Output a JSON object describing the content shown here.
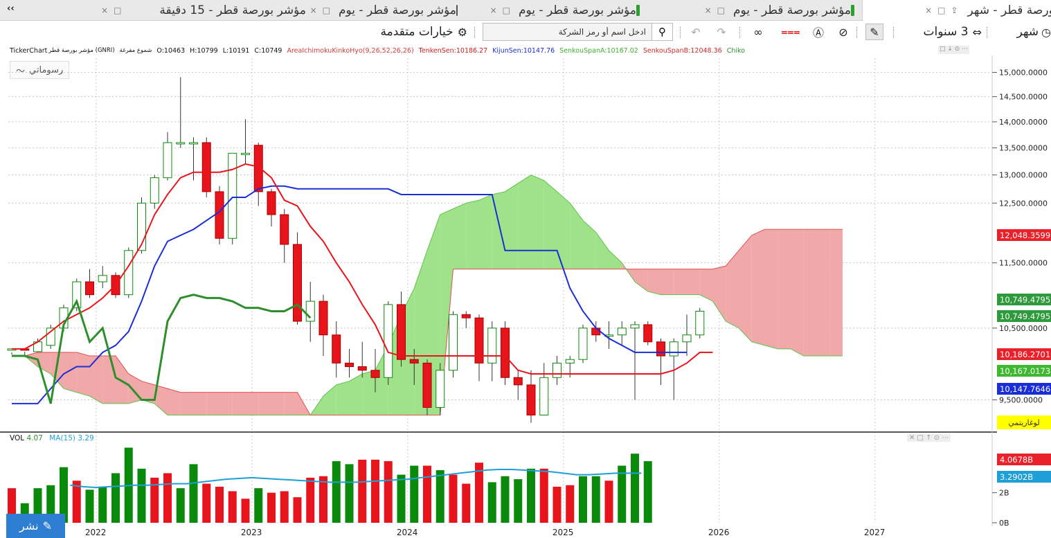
{
  "tabs": {
    "expand": "‹‹",
    "items": [
      {
        "title": "مؤشر بورصة قطر - 15 دقيقة",
        "marker": ""
      },
      {
        "title": "مؤشر بورصة قطر - يوم",
        "marker": "#ffffff"
      },
      {
        "title": "مؤشر بورصة قطر - يوم",
        "marker": "#2ca02c"
      },
      {
        "title": "مؤشر بورصة قطر - يوم",
        "marker": "#2ca02c"
      },
      {
        "title": "مؤشر بورصة قطر - شهر",
        "marker": "#2ca02c"
      }
    ],
    "ctrl_close": "×",
    "ctrl_max": "□",
    "ctrl_pin": "⇪"
  },
  "toolbar": {
    "period_label": "شهر",
    "range_label": "3 سنوات",
    "advanced_label": "خيارات متقدمة",
    "search_placeholder": "ادخل اسم أو رمز الشركة"
  },
  "info": {
    "source": "TickerChart",
    "symbol": "مؤشر بورصة قطر (GNRI)",
    "candle_type": "شموع مفرغة",
    "open": "O:10463",
    "high": "H:10799",
    "low": "L:10191",
    "close": "C:10749",
    "ichimoku": "AreaIchimokuKinkoHyo(9,26,52,26,26)",
    "tenken": "TenkenSen:10186.27",
    "kijun": "KijunSen:10147.76",
    "spanA": "SenkouSpanA:10167.02",
    "spanB": "SenkouSpanB:12048.36",
    "chiko": "Chiko"
  },
  "drawings_label": "رسوماتي",
  "volume_info": {
    "label": "VOL",
    "value": "4.07",
    "ma_label": "MA(15)",
    "ma_value": "3.29"
  },
  "price_badges": [
    {
      "text": "12,048.3599",
      "color": "#e8212b"
    },
    {
      "text": "10,749.4795",
      "color": "#2e9a3c"
    },
    {
      "text": "10,749.4795",
      "color": "#2e9a3c"
    },
    {
      "text": "10,186.2701",
      "color": "#e8212b"
    },
    {
      "text": "10,167.0173",
      "color": "#3eb82f"
    },
    {
      "text": "10,147.7646",
      "color": "#1b2ed6"
    }
  ],
  "volume_badges": [
    {
      "text": "4.0678B",
      "color": "#e8212b"
    },
    {
      "text": "3.2902B",
      "color": "#1f9fd8"
    }
  ],
  "log_label": "لوغاريتمي",
  "share_label": "نشر",
  "chart_data": {
    "type": "candlestick",
    "y_ticks": [
      "15,000.0000",
      "14,500.0000",
      "14,000.0000",
      "13,500.0000",
      "13,000.0000",
      "12,500.0000",
      "11,500.0000",
      "10,500.0000",
      "9,500.0000"
    ],
    "y_tick_values": [
      15000,
      14500,
      14000,
      13500,
      13000,
      12500,
      11500,
      10500,
      9500
    ],
    "vol_ticks": [
      "2B",
      "0B"
    ],
    "vol_tick_values": [
      2,
      0
    ],
    "x_labels": [
      "2022",
      "2023",
      "2024",
      "2025",
      "2026",
      "2027"
    ],
    "x_label_index": [
      6.5,
      18.5,
      30.5,
      42.5,
      54.5,
      66.5
    ],
    "candles": [
      [
        10200,
        10200,
        10150,
        10120
      ],
      [
        10200,
        10180,
        10160,
        10100
      ],
      [
        10160,
        10300,
        10350,
        10150
      ],
      [
        10250,
        10500,
        10550,
        10200
      ],
      [
        10500,
        10800,
        10850,
        10450
      ],
      [
        10800,
        11200,
        11250,
        10750
      ],
      [
        11200,
        11000,
        11400,
        10950
      ],
      [
        11200,
        11300,
        11450,
        11100
      ],
      [
        11300,
        11000,
        11350,
        10950
      ],
      [
        11000,
        11700,
        11750,
        10950
      ],
      [
        11700,
        12500,
        12600,
        11650
      ],
      [
        12500,
        12950,
        13000,
        12400
      ],
      [
        12950,
        13600,
        13800,
        12900
      ],
      [
        13600,
        13600,
        14900,
        13500
      ],
      [
        13600,
        13600,
        13700,
        12900
      ],
      [
        13600,
        12700,
        13700,
        12600
      ],
      [
        12700,
        11900,
        12800,
        11800
      ],
      [
        11900,
        13400,
        13400,
        11800
      ],
      [
        13400,
        13400,
        14050,
        13200
      ],
      [
        13550,
        12700,
        13600,
        12450
      ],
      [
        12700,
        12300,
        12750,
        12100
      ],
      [
        12300,
        11800,
        12400,
        11500
      ],
      [
        11800,
        10600,
        12000,
        10550
      ],
      [
        10600,
        10900,
        11200,
        10300
      ],
      [
        10900,
        10400,
        11000,
        10100
      ],
      [
        10400,
        10000,
        10600,
        9800
      ],
      [
        10000,
        9950,
        10200,
        9800
      ],
      [
        9950,
        9900,
        10300,
        9800
      ],
      [
        9900,
        9800,
        10200,
        9600
      ],
      [
        9800,
        10850,
        10900,
        9700
      ],
      [
        10850,
        10050,
        11050,
        9950
      ],
      [
        10050,
        10000,
        10200,
        9700
      ],
      [
        10000,
        9400,
        10050,
        9300
      ],
      [
        9400,
        9900,
        10000,
        9300
      ],
      [
        9900,
        10700,
        10750,
        9800
      ],
      [
        10700,
        10650,
        10750,
        10500
      ],
      [
        10650,
        10000,
        10700,
        9750
      ],
      [
        10000,
        10500,
        10600,
        9750
      ],
      [
        10500,
        9800,
        10600,
        9700
      ],
      [
        9800,
        9700,
        9900,
        9500
      ],
      [
        9700,
        9300,
        9900,
        9200
      ],
      [
        9300,
        9800,
        10000,
        9300
      ],
      [
        9800,
        10000,
        10100,
        9700
      ],
      [
        10000,
        10050,
        10100,
        9800
      ],
      [
        10050,
        10500,
        10550,
        10000
      ],
      [
        10500,
        10400,
        10600,
        10300
      ],
      [
        10400,
        10400,
        10600,
        10200
      ],
      [
        10400,
        10500,
        10600,
        10250
      ],
      [
        10500,
        10550,
        10600,
        9500
      ],
      [
        10550,
        10300,
        10600,
        10250
      ],
      [
        10300,
        10100,
        10350,
        9700
      ],
      [
        10100,
        10300,
        10350,
        9500
      ],
      [
        10300,
        10400,
        10700,
        10100
      ],
      [
        10400,
        10750,
        10800,
        10350
      ]
    ],
    "tenken": [
      10200,
      10200,
      10300,
      10450,
      10600,
      10700,
      10800,
      10950,
      11150,
      11450,
      11800,
      12300,
      12650,
      12950,
      13050,
      13050,
      13050,
      13100,
      13200,
      13150,
      12950,
      12550,
      12450,
      12100,
      11850,
      11500,
      11200,
      10850,
      10550,
      10150,
      10100,
      10100,
      10100,
      10100,
      10100,
      10100,
      10100,
      10100,
      10100,
      9900,
      9850,
      9850,
      9850,
      9850,
      9850,
      9850,
      9850,
      9850,
      9850,
      9850,
      9850,
      9900,
      10000,
      10150,
      10150
    ],
    "kijun": [
      9450,
      9450,
      9450,
      9650,
      9850,
      9950,
      9950,
      10150,
      10250,
      10450,
      10900,
      11450,
      11850,
      11950,
      12050,
      12200,
      12350,
      12600,
      12600,
      12750,
      12800,
      12800,
      12750,
      12750,
      12750,
      12750,
      12750,
      12750,
      12750,
      12750,
      12650,
      12650,
      12650,
      12650,
      12650,
      12650,
      12650,
      12650,
      11700,
      11700,
      11700,
      11700,
      11700,
      11100,
      10750,
      10500,
      10350,
      10250,
      10150,
      10150,
      10150,
      10150,
      10150
    ],
    "chiko": [
      10100,
      10100,
      10050,
      9450,
      10550,
      10900,
      10300,
      10500,
      9800,
      9700,
      9500,
      9500,
      10600,
      10950,
      11000,
      10950,
      10950,
      10900,
      10800,
      10800,
      10750,
      10750,
      10850,
      10650
    ],
    "cloud_a": [
      10100,
      10100,
      9950,
      9850,
      9650,
      9600,
      9550,
      9450,
      9450,
      9450,
      9500,
      9450,
      9300,
      9300,
      9300,
      9300,
      9300,
      9300,
      9300,
      9300,
      9300,
      9300,
      9300,
      9300,
      9550,
      9700,
      9750,
      9850,
      9900,
      10250,
      10700,
      11100,
      11700,
      12300,
      12400,
      12500,
      12550,
      12650,
      12700,
      12850,
      13000,
      12900,
      12700,
      12500,
      12200,
      12000,
      11700,
      11500,
      11200,
      11050,
      11000,
      11000,
      11000,
      11000,
      10900,
      10600,
      10500,
      10300,
      10250,
      10200,
      10200,
      10100,
      10100,
      10100,
      10100
    ],
    "cloud_b": [
      10100,
      10100,
      10150,
      10150,
      10150,
      10150,
      10100,
      10100,
      10100,
      9850,
      9750,
      9700,
      9650,
      9600,
      9600,
      9600,
      9600,
      9600,
      9600,
      9600,
      9600,
      9600,
      9600,
      9300,
      9300,
      9300,
      9300,
      9300,
      9300,
      9300,
      9300,
      9300,
      9300,
      9300,
      11400,
      11400,
      11400,
      11400,
      11400,
      11400,
      11400,
      11400,
      11400,
      11400,
      11400,
      11400,
      11400,
      11400,
      11400,
      11400,
      11400,
      11400,
      11400,
      11400,
      11400,
      11450,
      11700,
      11950,
      12050,
      12050,
      12050,
      12050,
      12050,
      12050,
      12050
    ],
    "volume": [
      [
        2.3,
        "r"
      ],
      [
        1.3,
        "g"
      ],
      [
        2.3,
        "g"
      ],
      [
        2.5,
        "g"
      ],
      [
        3.7,
        "g"
      ],
      [
        2.8,
        "r"
      ],
      [
        2.2,
        "g"
      ],
      [
        2.4,
        "g"
      ],
      [
        3.3,
        "g"
      ],
      [
        5.0,
        "g"
      ],
      [
        3.6,
        "g"
      ],
      [
        3.0,
        "r"
      ],
      [
        3.3,
        "r"
      ],
      [
        2.3,
        "g"
      ],
      [
        3.9,
        "g"
      ],
      [
        2.6,
        "r"
      ],
      [
        2.4,
        "r"
      ],
      [
        2.1,
        "r"
      ],
      [
        1.6,
        "r"
      ],
      [
        2.3,
        "g"
      ],
      [
        2.0,
        "r"
      ],
      [
        2.1,
        "r"
      ],
      [
        1.7,
        "r"
      ],
      [
        3.0,
        "r"
      ],
      [
        3.1,
        "r"
      ],
      [
        4.1,
        "g"
      ],
      [
        3.9,
        "g"
      ],
      [
        4.2,
        "r"
      ],
      [
        4.2,
        "r"
      ],
      [
        4.1,
        "r"
      ],
      [
        3.2,
        "g"
      ],
      [
        3.8,
        "g"
      ],
      [
        3.8,
        "r"
      ],
      [
        3.5,
        "g"
      ],
      [
        3.2,
        "r"
      ],
      [
        2.6,
        "r"
      ],
      [
        4.0,
        "r"
      ],
      [
        2.7,
        "g"
      ],
      [
        3.1,
        "g"
      ],
      [
        2.9,
        "g"
      ],
      [
        3.6,
        "g"
      ],
      [
        3.6,
        "r"
      ],
      [
        2.4,
        "r"
      ],
      [
        2.5,
        "r"
      ],
      [
        3.1,
        "g"
      ],
      [
        3.1,
        "g"
      ],
      [
        2.8,
        "r"
      ],
      [
        3.8,
        "g"
      ],
      [
        4.6,
        "g"
      ],
      [
        4.1,
        "g"
      ]
    ],
    "volume_ma": [
      2.5,
      2.4,
      2.35,
      2.4,
      2.45,
      2.5,
      2.5,
      2.55,
      2.6,
      2.6,
      2.7,
      2.8,
      2.9,
      2.95,
      3.0,
      2.95,
      2.9,
      2.85,
      2.8,
      2.75,
      2.7,
      2.7,
      2.7,
      2.75,
      2.8,
      2.85,
      2.9,
      3.0,
      3.1,
      3.2,
      3.3,
      3.4,
      3.5,
      3.55,
      3.55,
      3.5,
      3.45,
      3.4,
      3.3,
      3.2,
      3.2,
      3.25,
      3.3,
      3.3,
      3.3
    ]
  },
  "colors": {
    "up": "#0a8a0a",
    "down": "#e8141b",
    "tenken": "#e8141b",
    "kijun": "#1b2ed6",
    "chiko": "#2c8f2c",
    "cloud_bull": "#9fe28a",
    "cloud_bear": "#f0a8a8"
  }
}
